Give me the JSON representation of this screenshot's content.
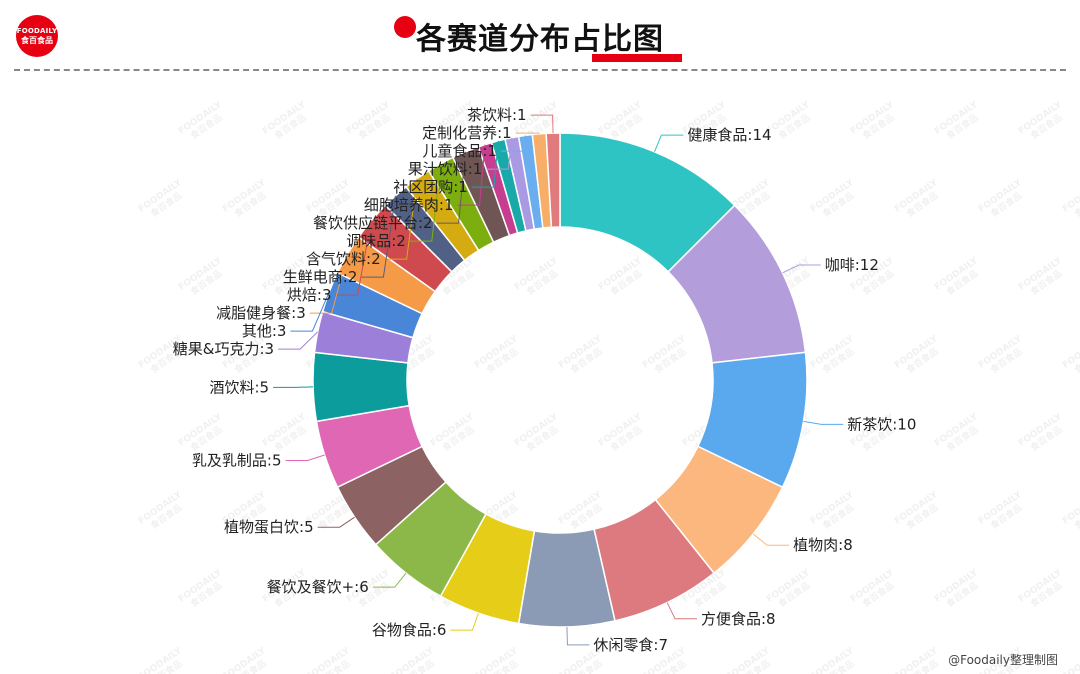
{
  "header": {
    "logo_top": "FOODAILY",
    "logo_bottom": "食百食品",
    "title": "各赛道分布占比图"
  },
  "watermark": {
    "line1": "FOODAILY",
    "line2": "食百食品"
  },
  "credit": "@Foodaily整理制图",
  "chart_data": {
    "type": "pie",
    "donut": true,
    "label_separator": ":",
    "slices": [
      {
        "label": "健康食品",
        "value": 14,
        "color": "#2ec4c4"
      },
      {
        "label": "咖啡",
        "value": 12,
        "color": "#b39ddb"
      },
      {
        "label": "新茶饮",
        "value": 10,
        "color": "#5aa9ee"
      },
      {
        "label": "植物肉",
        "value": 8,
        "color": "#fbb77d"
      },
      {
        "label": "方便食品",
        "value": 8,
        "color": "#dc7a80"
      },
      {
        "label": "休闲零食",
        "value": 7,
        "color": "#8c9bb5"
      },
      {
        "label": "谷物食品",
        "value": 6,
        "color": "#e5cd18"
      },
      {
        "label": "餐饮及餐饮+",
        "value": 6,
        "color": "#8cb84a"
      },
      {
        "label": "植物蛋白饮",
        "value": 5,
        "color": "#8d6262"
      },
      {
        "label": "乳及乳制品",
        "value": 5,
        "color": "#df67b4"
      },
      {
        "label": "酒饮料",
        "value": 5,
        "color": "#0c9c9c"
      },
      {
        "label": "糖果&巧克力",
        "value": 3,
        "color": "#9b7fd8"
      },
      {
        "label": "其他",
        "value": 3,
        "color": "#4a86d8"
      },
      {
        "label": "减脂健身餐",
        "value": 3,
        "color": "#f59a47"
      },
      {
        "label": "烘焙",
        "value": 3,
        "color": "#cf4a4f"
      },
      {
        "label": "生鲜电商",
        "value": 2,
        "color": "#516085"
      },
      {
        "label": "含气饮料",
        "value": 2,
        "color": "#d4ac12"
      },
      {
        "label": "调味品",
        "value": 2,
        "color": "#7dae0f"
      },
      {
        "label": "餐饮供应链平台",
        "value": 2,
        "color": "#705555"
      },
      {
        "label": "细胞培养肉",
        "value": 1,
        "color": "#c63e8f"
      },
      {
        "label": "社区团购",
        "value": 1,
        "color": "#1aa9a9"
      },
      {
        "label": "果汁饮料",
        "value": 1,
        "color": "#a99ae3"
      },
      {
        "label": "儿童食品",
        "value": 1,
        "color": "#6aaef0"
      },
      {
        "label": "定制化营养",
        "value": 1,
        "color": "#f7ae69"
      },
      {
        "label": "茶饮料",
        "value": 1,
        "color": "#e07a7d"
      }
    ]
  }
}
